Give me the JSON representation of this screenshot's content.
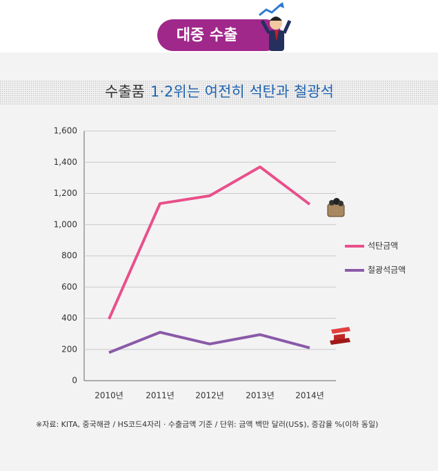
{
  "header": {
    "badge": "대중 수출"
  },
  "chart_data": {
    "type": "line",
    "title_prefix": "수출품",
    "title_highlight": "1·2위는 여전히 석탄과 철광석",
    "categories": [
      "2010년",
      "2011년",
      "2012년",
      "2013년",
      "2014년"
    ],
    "series": [
      {
        "name": "석탄금액",
        "color": "#e8508a",
        "values": [
          395,
          1135,
          1185,
          1370,
          1130
        ]
      },
      {
        "name": "철광석금액",
        "color": "#8a5aa8",
        "values": [
          180,
          310,
          235,
          295,
          210
        ]
      }
    ],
    "ylim": [
      0,
      1600
    ],
    "yticks": [
      0,
      200,
      400,
      600,
      800,
      {
        "value": 1000,
        "label": "1,000"
      },
      {
        "value": 1200,
        "label": "1,200"
      },
      {
        "value": 1400,
        "label": "1,400"
      },
      {
        "value": 1600,
        "label": "1,600"
      }
    ],
    "grid": true,
    "source": "※자료: KITA, 중국해관 / HS코드4자리 · 수출금액 기준 / 단위: 금액 백만 달러(US$), 증감율 %(이하 동일)"
  }
}
